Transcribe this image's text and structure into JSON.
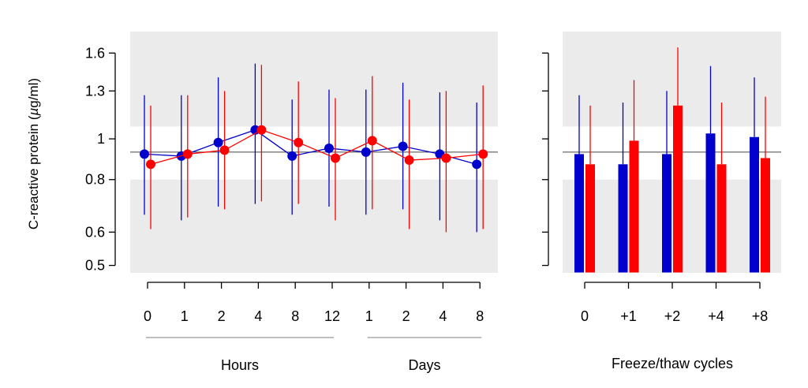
{
  "chart_data": [
    {
      "type": "scatter",
      "ylabel": "C-reactive protein (µg/ml)",
      "ylabel_parts": {
        "before": "C-reactive protein (",
        "unit_prefix": "µ",
        "unit": "g/ml)"
      },
      "y_scale": "log",
      "ylim": [
        0.48,
        1.8
      ],
      "yticks": [
        {
          "value": 0.5,
          "label": "0.5"
        },
        {
          "value": 0.6,
          "label": "0.6"
        },
        {
          "value": 0.8,
          "label": "0.8"
        },
        {
          "value": 1.0,
          "label": "1"
        },
        {
          "value": 1.3,
          "label": "1.3"
        },
        {
          "value": 1.6,
          "label": "1.6"
        }
      ],
      "shaded_bands": [
        [
          0.48,
          0.8
        ],
        [
          1.07,
          1.8
        ]
      ],
      "reference_line": 0.93,
      "categories": [
        "0",
        "1",
        "2",
        "4",
        "8",
        "12",
        "1",
        "2",
        "4",
        "8"
      ],
      "groups": [
        {
          "label": "Hours",
          "start": 0,
          "end": 5
        },
        {
          "label": "Days",
          "start": 6,
          "end": 9
        }
      ],
      "series": [
        {
          "color": "#0000cc",
          "values": [
            0.92,
            0.91,
            0.98,
            1.05,
            0.91,
            0.95,
            0.93,
            0.96,
            0.92,
            0.87
          ],
          "err_low": [
            0.66,
            0.64,
            0.69,
            0.7,
            0.66,
            0.69,
            0.66,
            0.68,
            0.64,
            0.6
          ],
          "err_high": [
            1.27,
            1.27,
            1.4,
            1.51,
            1.24,
            1.31,
            1.31,
            1.36,
            1.29,
            1.22
          ]
        },
        {
          "color": "#ff0000",
          "values": [
            0.87,
            0.92,
            0.94,
            1.05,
            0.98,
            0.9,
            0.99,
            0.89,
            0.9,
            0.92
          ],
          "err_low": [
            0.61,
            0.65,
            0.68,
            0.71,
            0.7,
            0.64,
            0.68,
            0.61,
            0.6,
            0.61
          ],
          "err_high": [
            1.2,
            1.27,
            1.3,
            1.5,
            1.37,
            1.25,
            1.41,
            1.24,
            1.3,
            1.34
          ]
        }
      ]
    },
    {
      "type": "bar",
      "y_scale": "log",
      "ylim": [
        0.48,
        1.8
      ],
      "yticks": [
        0.5,
        0.6,
        0.8,
        1.0,
        1.3,
        1.6
      ],
      "shaded_bands": [
        [
          0.48,
          0.8
        ],
        [
          1.07,
          1.8
        ]
      ],
      "reference_line": 0.93,
      "categories": [
        "0",
        "+1",
        "+2",
        "+4",
        "+8"
      ],
      "xlabel": "Freeze/thaw cycles",
      "series": [
        {
          "color": "#0000cc",
          "values": [
            0.92,
            0.87,
            0.92,
            1.03,
            1.01
          ],
          "err_high": [
            1.27,
            1.22,
            1.3,
            1.49,
            1.4
          ]
        },
        {
          "color": "#ff0000",
          "values": [
            0.87,
            0.99,
            1.2,
            0.87,
            0.9
          ],
          "err_high": [
            1.2,
            1.38,
            1.65,
            1.22,
            1.26
          ]
        }
      ]
    }
  ]
}
